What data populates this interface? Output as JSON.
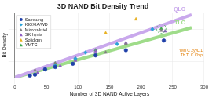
{
  "chart_data": {
    "type": "scatter",
    "title": "3D NAND Bit Density Trend",
    "x_label": "Number of 3D NAND Active Layers",
    "y_label": "Bit Density",
    "xlim": [
      0,
      300
    ],
    "xticks": [
      0,
      50,
      100,
      150,
      200,
      250,
      300
    ],
    "ylim": [
      0,
      20
    ],
    "yticks": [
      0,
      5,
      10,
      15,
      20
    ],
    "grid": true,
    "tick_labels": "x",
    "legend": "upper left",
    "series": [
      {
        "name": "Samsung",
        "color": "#1f3fa8",
        "marker": "circle",
        "x": [
          24,
          32,
          48,
          64,
          92,
          128,
          176,
          236
        ],
        "values": [
          0.6,
          0.9,
          2.6,
          3.3,
          4.3,
          6.9,
          8.5,
          11.5
        ]
      },
      {
        "name": "KIOXIA/WD",
        "color": "#29a3d9",
        "marker": "diamond",
        "x": [
          48,
          64,
          96,
          112,
          162,
          218
        ],
        "values": [
          2.5,
          3.7,
          5.9,
          7.8,
          10.4,
          15.0
        ]
      },
      {
        "name": "Micron/Intel",
        "color": "#7f7f7f",
        "marker": "triangle",
        "x": [
          32,
          64,
          96,
          144,
          176,
          232
        ],
        "values": [
          2.3,
          4.4,
          6.0,
          7.8,
          10.5,
          14.6
        ]
      },
      {
        "name": "SK hynix",
        "color": "#8e5cc4",
        "marker": "triangle",
        "x": [
          36,
          72,
          96,
          128,
          176,
          238
        ],
        "values": [
          1.4,
          3.6,
          5.3,
          8.1,
          10.8,
          14.4
        ]
      },
      {
        "name": "Solidigm",
        "color": "#e8b020",
        "marker": "triangle",
        "x": [
          144,
          192
        ],
        "values": [
          13.8,
          18.1
        ]
      },
      {
        "name": "YMTC",
        "color": "#3aa84a",
        "marker": "triangle",
        "x": [
          64,
          128,
          232
        ],
        "values": [
          4.4,
          8.5,
          15.2
        ]
      },
      {
        "name": "QLC",
        "color": "#c9a8ec",
        "type": "line",
        "line_style": "solid",
        "x": [
          0,
          280
        ],
        "values": [
          0,
          19.5
        ]
      },
      {
        "name": "TLC",
        "color": "#9fdc8a",
        "type": "line",
        "line_style": "solid",
        "x": [
          0,
          280
        ],
        "values": [
          0,
          15.5
        ]
      }
    ],
    "annotations": [
      {
        "text": "YMTC 2yyL 1 Tb TLC Chip",
        "series": "YMTC",
        "color": "#e07b00"
      }
    ]
  }
}
